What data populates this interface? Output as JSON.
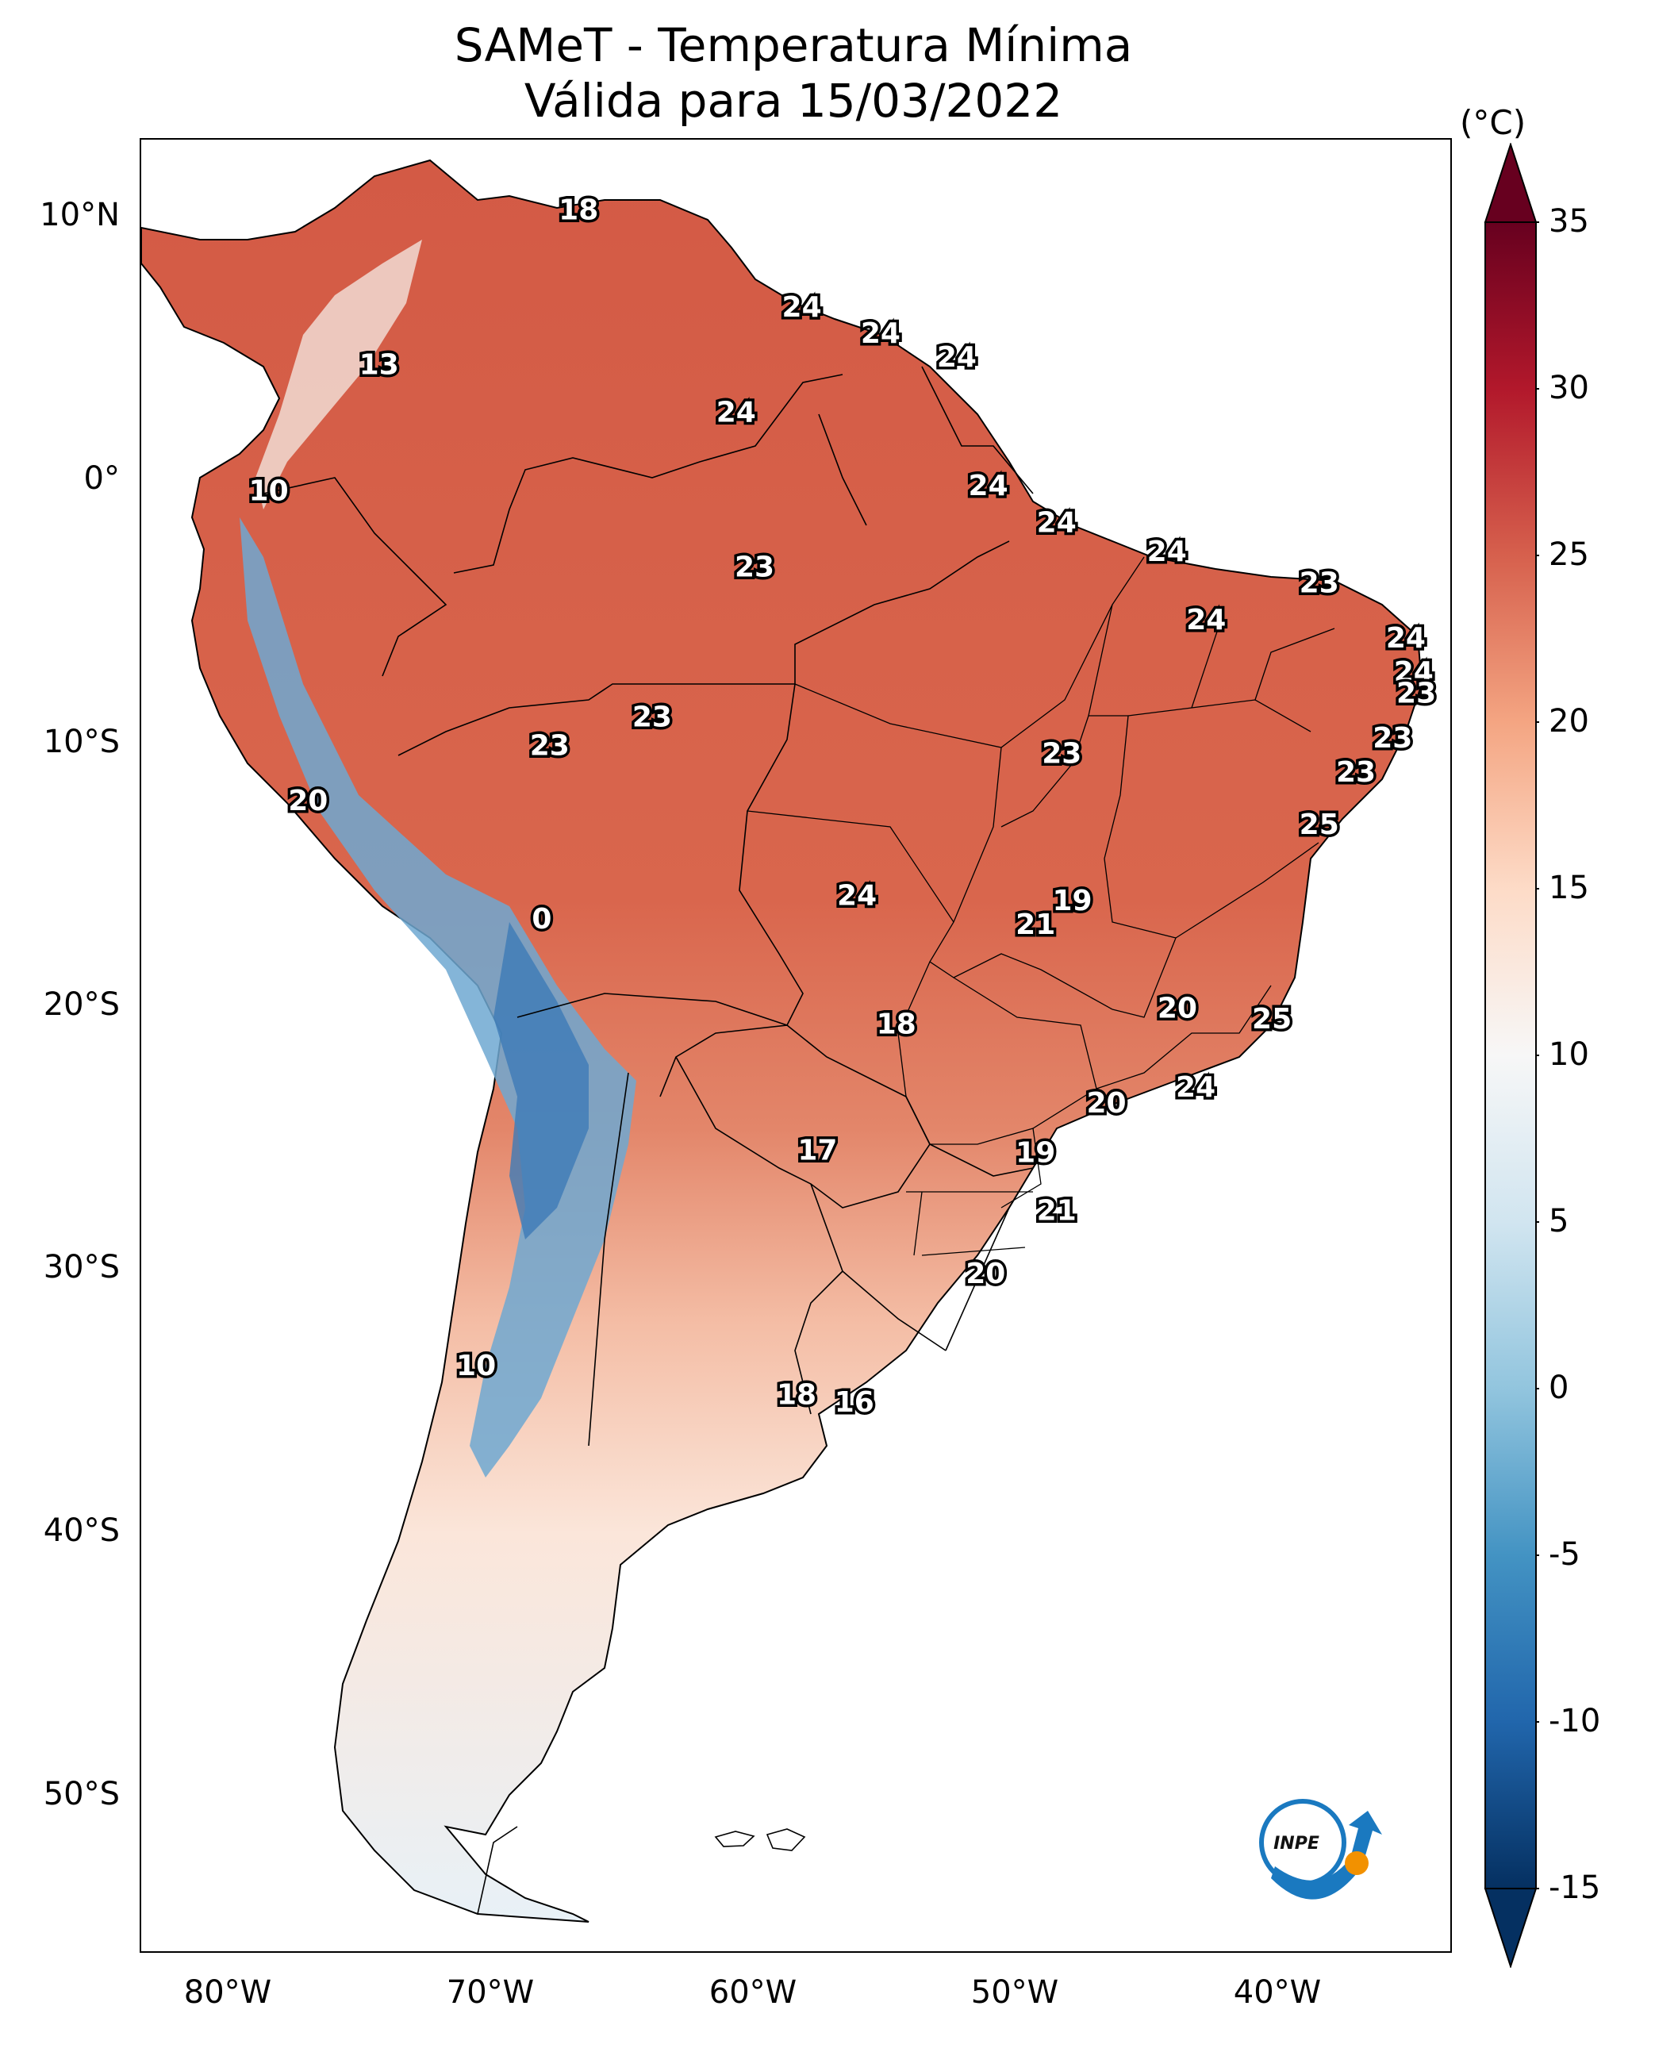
{
  "map": {
    "title_line1": "SAMeT - Temperatura Mínima",
    "title_line2": "Válida para 15/03/2022",
    "variable": "Temperatura Mínima",
    "valid_date": "15/03/2022",
    "lat_labels": [
      "10°N",
      "0°",
      "10°S",
      "20°S",
      "30°S",
      "40°S",
      "50°S"
    ],
    "lon_labels": [
      "80°W",
      "70°W",
      "60°W",
      "50°W",
      "40°W"
    ],
    "extent": {
      "lon_min": -83,
      "lon_max": -33,
      "lat_min": -56,
      "lat_max": 13
    },
    "stations": [
      {
        "value": "18",
        "lon": -66.7,
        "lat": 10.5
      },
      {
        "value": "13",
        "lon": -74.3,
        "lat": 4.6
      },
      {
        "value": "24",
        "lon": -58.2,
        "lat": 6.8
      },
      {
        "value": "24",
        "lon": -55.2,
        "lat": 5.8
      },
      {
        "value": "24",
        "lon": -52.3,
        "lat": 4.9
      },
      {
        "value": "24",
        "lon": -60.7,
        "lat": 2.8
      },
      {
        "value": "10",
        "lon": -78.5,
        "lat": -0.2
      },
      {
        "value": "24",
        "lon": -51.1,
        "lat": 0.0
      },
      {
        "value": "24",
        "lon": -48.5,
        "lat": -1.4
      },
      {
        "value": "23",
        "lon": -60.0,
        "lat": -3.1
      },
      {
        "value": "24",
        "lon": -44.3,
        "lat": -2.5
      },
      {
        "value": "23",
        "lon": -38.5,
        "lat": -3.7
      },
      {
        "value": "24",
        "lon": -42.8,
        "lat": -5.1
      },
      {
        "value": "24",
        "lon": -35.2,
        "lat": -5.8
      },
      {
        "value": "24",
        "lon": -34.9,
        "lat": -7.1
      },
      {
        "value": "23",
        "lon": -34.8,
        "lat": -7.9
      },
      {
        "value": "23",
        "lon": -63.9,
        "lat": -8.8
      },
      {
        "value": "23",
        "lon": -67.8,
        "lat": -9.9
      },
      {
        "value": "23",
        "lon": -35.7,
        "lat": -9.6
      },
      {
        "value": "23",
        "lon": -48.3,
        "lat": -10.2
      },
      {
        "value": "23",
        "lon": -37.1,
        "lat": -10.9
      },
      {
        "value": "20",
        "lon": -77.0,
        "lat": -12.0
      },
      {
        "value": "25",
        "lon": -38.5,
        "lat": -12.9
      },
      {
        "value": "24",
        "lon": -56.1,
        "lat": -15.6
      },
      {
        "value": "19",
        "lon": -47.9,
        "lat": -15.8
      },
      {
        "value": "0",
        "lon": -68.1,
        "lat": -16.5
      },
      {
        "value": "21",
        "lon": -49.3,
        "lat": -16.7
      },
      {
        "value": "20",
        "lon": -43.9,
        "lat": -19.9
      },
      {
        "value": "25",
        "lon": -40.3,
        "lat": -20.3
      },
      {
        "value": "18",
        "lon": -54.6,
        "lat": -20.5
      },
      {
        "value": "24",
        "lon": -43.2,
        "lat": -22.9
      },
      {
        "value": "20",
        "lon": -46.6,
        "lat": -23.5
      },
      {
        "value": "17",
        "lon": -57.6,
        "lat": -25.3
      },
      {
        "value": "19",
        "lon": -49.3,
        "lat": -25.4
      },
      {
        "value": "21",
        "lon": -48.5,
        "lat": -27.6
      },
      {
        "value": "20",
        "lon": -51.2,
        "lat": -30.0
      },
      {
        "value": "10",
        "lon": -70.6,
        "lat": -33.5
      },
      {
        "value": "18",
        "lon": -58.4,
        "lat": -34.6
      },
      {
        "value": "16",
        "lon": -56.2,
        "lat": -34.9
      }
    ]
  },
  "colorbar": {
    "unit": "(°C)",
    "vmin": -15,
    "vmax": 35,
    "ticks": [
      "35",
      "30",
      "25",
      "20",
      "15",
      "10",
      "5",
      "0",
      "-5",
      "-10",
      "-15"
    ],
    "colors": [
      "#053061",
      "#2166ac",
      "#4393c3",
      "#92c5de",
      "#d1e5f0",
      "#f7f7f7",
      "#fddbc7",
      "#f4a582",
      "#d6604d",
      "#b2182b",
      "#67001f"
    ]
  },
  "logo": {
    "text": "INPE"
  }
}
